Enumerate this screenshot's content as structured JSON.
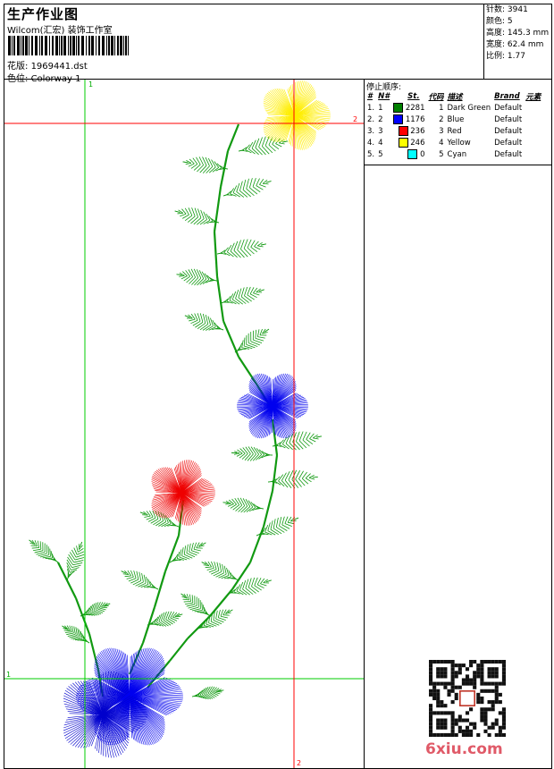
{
  "header": {
    "title": "生产作业图",
    "company": "Wilcom(汇宏) 装饰工作室",
    "design_label": "花版:",
    "design_value": "1969441.dst",
    "colorway_label": "色位:",
    "colorway_value": "Colorway 1"
  },
  "stats": [
    {
      "label": "针数:",
      "value": "3941"
    },
    {
      "label": "颜色:",
      "value": "5"
    },
    {
      "label": "高度:",
      "value": "145.3 mm"
    },
    {
      "label": "宽度:",
      "value": "62.4 mm"
    },
    {
      "label": "比例:",
      "value": "1.77"
    }
  ],
  "stop_sequence": {
    "title": "停止顺序:",
    "columns": [
      "#",
      "N#",
      "St.",
      "代码",
      "描述",
      "Brand",
      "元素"
    ],
    "rows": [
      {
        "idx": "1.",
        "n": "1",
        "color": "#008000",
        "stitches": "2281",
        "code": "1",
        "desc": "Dark Green",
        "brand": "Default"
      },
      {
        "idx": "2.",
        "n": "2",
        "color": "#0000ff",
        "stitches": "1176",
        "code": "2",
        "desc": "Blue",
        "brand": "Default"
      },
      {
        "idx": "3.",
        "n": "3",
        "color": "#ff0000",
        "stitches": "236",
        "code": "3",
        "desc": "Red",
        "brand": "Default"
      },
      {
        "idx": "4.",
        "n": "4",
        "color": "#ffff00",
        "stitches": "246",
        "code": "4",
        "desc": "Yellow",
        "brand": "Default"
      },
      {
        "idx": "5.",
        "n": "5",
        "color": "#00ffff",
        "stitches": "0",
        "code": "5",
        "desc": "Cyan",
        "brand": "Default"
      }
    ]
  },
  "guides": {
    "green_v_label": "1",
    "green_h_label": "1",
    "red_v_label": "2",
    "red_h_label": "2"
  },
  "watermark": "6xiu.com",
  "colors": {
    "green_guide": "#00cc00",
    "red_guide": "#ff0000"
  }
}
